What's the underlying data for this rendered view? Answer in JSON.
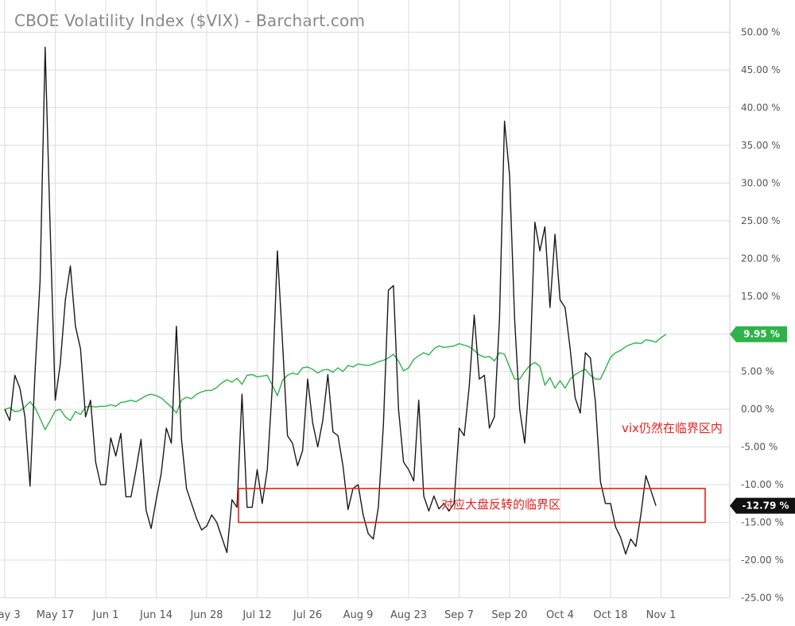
{
  "chart_data": {
    "type": "line",
    "title": "CBOE Volatility Index ($VIX) - Barchart.com",
    "y_unit": "%",
    "ylim": [
      -25,
      50
    ],
    "yticks": [
      "50.00 %",
      "45.00 %",
      "40.00 %",
      "35.00 %",
      "30.00 %",
      "25.00 %",
      "20.00 %",
      "15.00 %",
      "10.00 %",
      "5.00 %",
      "0.00 %",
      "-5.00 %",
      "-10.00 %",
      "-15.00 %",
      "-20.00 %",
      "-25.00 %"
    ],
    "ytick_values": [
      50,
      45,
      40,
      35,
      30,
      25,
      20,
      15,
      10,
      5,
      0,
      -5,
      -10,
      -15,
      -20,
      -25
    ],
    "xticks": [
      "May 3",
      "May 17",
      "Jun 1",
      "Jun 14",
      "Jun 28",
      "Jul 12",
      "Jul 26",
      "Aug 9",
      "Aug 23",
      "Sep 7",
      "Sep 20",
      "Oct 4",
      "Oct 18",
      "Nov 1"
    ],
    "xtick_index": [
      0,
      10,
      20,
      30,
      40,
      50,
      60,
      70,
      80,
      90,
      100,
      110,
      120,
      130
    ],
    "grid": true,
    "series": [
      {
        "color": "#1a1a1a",
        "last_label": "-12.79 %",
        "values": [
          0.0,
          -1.5,
          4.5,
          2.8,
          -1.0,
          -10.2,
          5.0,
          17.0,
          48.0,
          24.0,
          1.2,
          6.0,
          14.5,
          19.0,
          11.0,
          8.0,
          -1.0,
          1.2,
          -7.0,
          -10.0,
          -10.0,
          -3.8,
          -6.2,
          -3.2,
          -11.6,
          -11.6,
          -8.0,
          -4.0,
          -13.4,
          -15.8,
          -12.0,
          -8.5,
          -2.5,
          -4.5,
          11.0,
          -4.0,
          -10.5,
          -12.5,
          -14.5,
          -16.0,
          -15.5,
          -14.0,
          -15.0,
          -17.0,
          -19.0,
          -12.0,
          -13.0,
          2.0,
          -13.0,
          -13.0,
          -8.0,
          -12.5,
          -8.0,
          3.0,
          21.0,
          9.0,
          -3.5,
          -4.5,
          -7.5,
          -5.5,
          4.0,
          -1.8,
          -5.0,
          -1.5,
          4.6,
          -3.0,
          -3.5,
          -7.5,
          -13.3,
          -10.5,
          -10.0,
          -14.0,
          -16.5,
          -17.2,
          -13.0,
          -2.0,
          15.8,
          16.4,
          0.0,
          -7.0,
          -8.0,
          -9.5,
          1.2,
          -11.5,
          -13.5,
          -11.5,
          -13.2,
          -12.5,
          -13.5,
          -12.5,
          -2.5,
          -3.5,
          3.0,
          12.5,
          4.0,
          4.5,
          -2.5,
          -1.0,
          12.0,
          38.2,
          31.0,
          12.0,
          0.0,
          -4.5,
          5.0,
          24.8,
          21.0,
          24.2,
          13.5,
          23.2,
          14.5,
          13.5,
          8.0,
          1.5,
          -0.5,
          7.5,
          6.8,
          1.0,
          -9.6,
          -12.5,
          -12.5,
          -15.6,
          -17.0,
          -19.2,
          -17.2,
          -18.2,
          -14.0,
          -8.8,
          -10.8,
          -12.79
        ]
      },
      {
        "color": "#2db34a",
        "last_label": "9.95 %",
        "values": [
          0.0,
          0.2,
          -0.3,
          -0.2,
          0.3,
          1.0,
          0.2,
          -1.2,
          -2.7,
          -1.5,
          -0.2,
          0.0,
          -1.0,
          -1.5,
          -0.3,
          -0.7,
          0.3,
          0.4,
          0.3,
          0.4,
          0.4,
          0.6,
          0.4,
          0.9,
          1.0,
          1.2,
          1.0,
          1.4,
          1.8,
          2.0,
          1.8,
          1.5,
          0.9,
          0.3,
          -0.5,
          1.2,
          1.6,
          1.4,
          2.0,
          2.3,
          2.5,
          2.5,
          2.9,
          3.5,
          3.9,
          3.6,
          4.1,
          3.3,
          4.5,
          4.6,
          4.3,
          4.4,
          4.5,
          3.2,
          1.8,
          3.8,
          4.5,
          4.8,
          4.6,
          5.5,
          5.6,
          5.3,
          4.8,
          5.2,
          5.3,
          4.9,
          5.5,
          5.0,
          5.8,
          5.6,
          6.0,
          5.9,
          5.8,
          6.0,
          6.3,
          6.5,
          6.8,
          7.3,
          6.4,
          5.1,
          5.5,
          6.6,
          7.1,
          7.5,
          7.2,
          8.0,
          8.4,
          8.2,
          8.3,
          8.4,
          8.7,
          8.5,
          8.3,
          7.8,
          7.2,
          6.9,
          7.0,
          6.4,
          7.5,
          7.3,
          5.6,
          4.0,
          4.0,
          5.0,
          5.8,
          6.2,
          5.7,
          3.2,
          4.2,
          2.8,
          3.8,
          2.8,
          4.0,
          4.6,
          5.0,
          5.3,
          4.5,
          4.0,
          4.0,
          5.4,
          6.9,
          7.5,
          7.8,
          8.3,
          8.6,
          8.8,
          8.7,
          9.2,
          9.1,
          8.9,
          9.5,
          9.95
        ]
      }
    ],
    "annotations": [
      {
        "text": "vix仍然在临界区内"
      },
      {
        "text": "对应大盘反转的临界区",
        "range": [
          -10.5,
          -15.0
        ]
      }
    ]
  }
}
